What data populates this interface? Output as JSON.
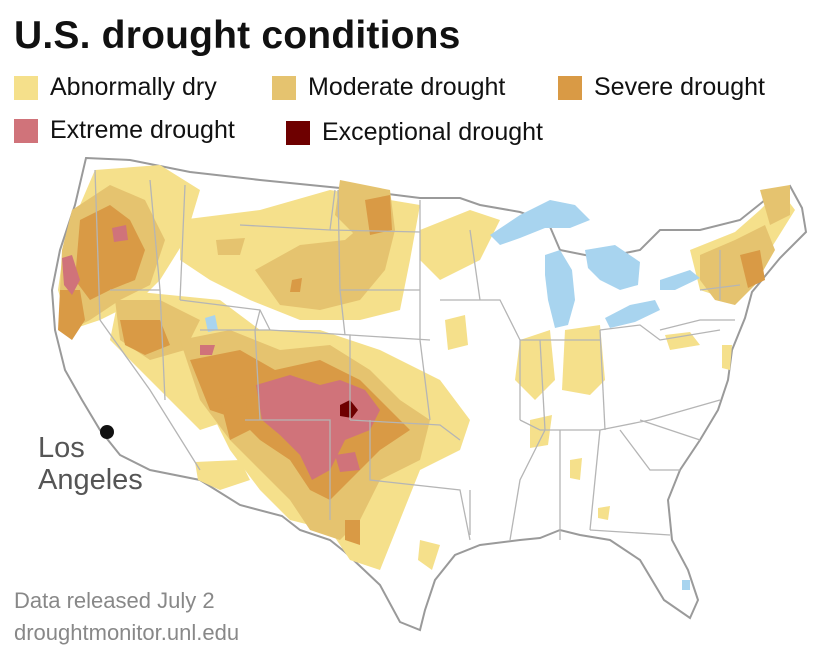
{
  "title": "U.S. drought conditions",
  "legend": [
    {
      "label": "Abnormally dry",
      "color": "#f5e08b"
    },
    {
      "label": "Moderate drought",
      "color": "#e5c36f"
    },
    {
      "label": "Severe drought",
      "color": "#d99a45"
    },
    {
      "label": "Extreme drought",
      "color": "#d0737a"
    },
    {
      "label": "Exceptional drought",
      "color": "#6e0000"
    }
  ],
  "city": {
    "name_line1": "Los",
    "name_line2": "Angeles"
  },
  "source": {
    "released": "Data released July 2",
    "url": "droughtmonitor.unl.edu"
  },
  "colors": {
    "water": "#a8d4ef",
    "border": "#b5b5b5",
    "land": "#ffffff"
  }
}
